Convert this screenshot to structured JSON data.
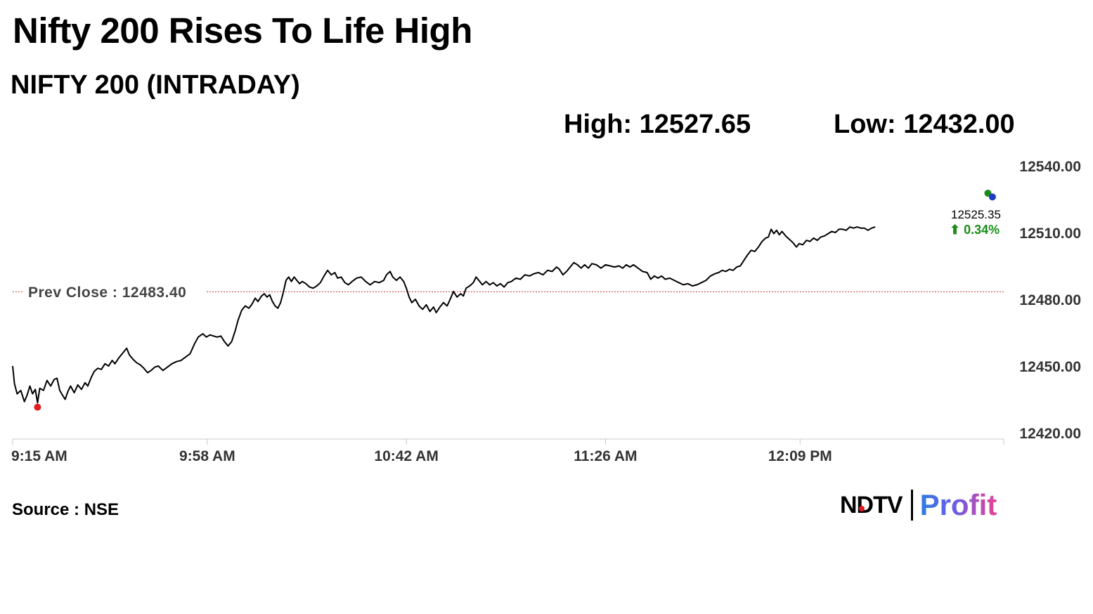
{
  "header": {
    "headline": "Nifty 200 Rises To Life High",
    "subtitle": "NIFTY 200 (INTRADAY)",
    "high_label": "High: 12527.65",
    "low_label": "Low: 12432.00"
  },
  "footer": {
    "source": "Source : NSE",
    "logo_ndtv": "NDTV",
    "logo_profit": "Profit"
  },
  "chart_data": {
    "type": "line",
    "title": "NIFTY 200 (INTRADAY)",
    "xlabel": "",
    "ylabel": "",
    "x_ticks": [
      "9:15 AM",
      "9:58 AM",
      "10:42 AM",
      "11:26 AM",
      "12:09 PM"
    ],
    "x_tick_minutes": [
      555,
      598,
      642,
      686,
      729
    ],
    "xlim": [
      555,
      774
    ],
    "y_ticks": [
      "12540.00",
      "12510.00",
      "12480.00",
      "12450.00",
      "12420.00"
    ],
    "ylim": [
      12418,
      12541
    ],
    "grid": false,
    "prev_close": 12483.4,
    "prev_close_label": "Prev Close : 12483.40",
    "prev_close_color": "#c0392b",
    "line_color": "#000000",
    "last_value": "12525.35",
    "change": "0.34%",
    "change_arrow": "⬆",
    "change_color": "#1a8c1a",
    "low_marker": {
      "time": 560.5,
      "value": 12431.5,
      "color": "#e02020"
    },
    "high_marker": {
      "time": 770.5,
      "value": 12527.7,
      "color": "#1a8c1a"
    },
    "current_marker": {
      "time": 771.5,
      "value": 12526.0,
      "color": "#1f3fbf"
    },
    "series": [
      {
        "points": [
          [
            555.0,
            12450.0
          ],
          [
            555.4,
            12442.0
          ],
          [
            556.0,
            12437.5
          ],
          [
            556.8,
            12439.0
          ],
          [
            557.6,
            12434.0
          ],
          [
            558.2,
            12437.0
          ],
          [
            558.8,
            12441.0
          ],
          [
            559.4,
            12437.5
          ],
          [
            560.0,
            12439.5
          ],
          [
            560.5,
            12433.5
          ],
          [
            561.0,
            12440.0
          ],
          [
            561.8,
            12439.0
          ],
          [
            562.6,
            12443.5
          ],
          [
            563.4,
            12441.0
          ],
          [
            564.2,
            12444.0
          ],
          [
            564.8,
            12444.5
          ],
          [
            565.4,
            12439.0
          ],
          [
            566.0,
            12437.0
          ],
          [
            566.6,
            12435.0
          ],
          [
            567.2,
            12438.5
          ],
          [
            567.8,
            12441.0
          ],
          [
            568.6,
            12438.0
          ],
          [
            569.4,
            12441.5
          ],
          [
            570.2,
            12439.5
          ],
          [
            571.0,
            12442.5
          ],
          [
            571.6,
            12441.0
          ],
          [
            572.4,
            12445.0
          ],
          [
            573.0,
            12447.5
          ],
          [
            573.8,
            12449.0
          ],
          [
            574.6,
            12448.5
          ],
          [
            575.4,
            12451.0
          ],
          [
            576.2,
            12450.0
          ],
          [
            577.0,
            12452.5
          ],
          [
            577.6,
            12451.0
          ],
          [
            578.4,
            12453.5
          ],
          [
            579.4,
            12456.0
          ],
          [
            580.2,
            12458.0
          ],
          [
            580.8,
            12455.0
          ],
          [
            581.6,
            12453.0
          ],
          [
            582.4,
            12451.5
          ],
          [
            583.2,
            12450.5
          ],
          [
            584.0,
            12449.0
          ],
          [
            584.8,
            12447.0
          ],
          [
            585.6,
            12448.0
          ],
          [
            586.4,
            12449.5
          ],
          [
            587.2,
            12450.0
          ],
          [
            588.2,
            12448.0
          ],
          [
            589.2,
            12449.5
          ],
          [
            590.2,
            12451.0
          ],
          [
            591.2,
            12452.0
          ],
          [
            592.2,
            12452.5
          ],
          [
            593.2,
            12454.0
          ],
          [
            594.2,
            12455.5
          ],
          [
            595.2,
            12460.0
          ],
          [
            596.0,
            12463.0
          ],
          [
            597.0,
            12464.5
          ],
          [
            597.8,
            12463.0
          ],
          [
            598.6,
            12464.0
          ],
          [
            599.4,
            12463.5
          ],
          [
            600.2,
            12463.0
          ],
          [
            601.0,
            12463.5
          ],
          [
            601.8,
            12461.0
          ],
          [
            602.6,
            12459.0
          ],
          [
            603.4,
            12461.0
          ],
          [
            604.2,
            12466.0
          ],
          [
            604.8,
            12470.5
          ],
          [
            605.6,
            12475.0
          ],
          [
            606.4,
            12477.0
          ],
          [
            607.2,
            12476.0
          ],
          [
            607.8,
            12477.5
          ],
          [
            608.6,
            12480.5
          ],
          [
            609.2,
            12479.0
          ],
          [
            610.0,
            12481.5
          ],
          [
            610.6,
            12482.5
          ],
          [
            611.2,
            12481.0
          ],
          [
            611.8,
            12482.0
          ],
          [
            612.4,
            12479.0
          ],
          [
            613.0,
            12477.0
          ],
          [
            613.6,
            12476.0
          ],
          [
            614.2,
            12478.5
          ],
          [
            614.8,
            12483.0
          ],
          [
            615.4,
            12488.5
          ],
          [
            616.0,
            12490.0
          ],
          [
            616.6,
            12488.0
          ],
          [
            617.2,
            12490.0
          ],
          [
            617.8,
            12488.5
          ],
          [
            618.4,
            12487.0
          ],
          [
            619.0,
            12488.0
          ],
          [
            619.8,
            12487.0
          ],
          [
            620.6,
            12485.5
          ],
          [
            621.4,
            12485.0
          ],
          [
            622.2,
            12486.0
          ],
          [
            623.0,
            12487.5
          ],
          [
            623.8,
            12490.5
          ],
          [
            624.6,
            12493.0
          ],
          [
            625.4,
            12491.0
          ],
          [
            626.2,
            12492.0
          ],
          [
            626.8,
            12489.5
          ],
          [
            627.6,
            12490.0
          ],
          [
            628.4,
            12487.5
          ],
          [
            629.2,
            12486.5
          ],
          [
            630.0,
            12488.0
          ],
          [
            631.0,
            12489.5
          ],
          [
            632.0,
            12490.0
          ],
          [
            633.0,
            12488.0
          ],
          [
            634.0,
            12486.5
          ],
          [
            635.0,
            12488.0
          ],
          [
            636.0,
            12487.5
          ],
          [
            637.0,
            12488.5
          ],
          [
            637.6,
            12491.0
          ],
          [
            638.4,
            12492.5
          ],
          [
            639.0,
            12490.0
          ],
          [
            639.8,
            12488.5
          ],
          [
            640.6,
            12490.0
          ],
          [
            641.4,
            12488.0
          ],
          [
            642.0,
            12485.0
          ],
          [
            642.6,
            12481.0
          ],
          [
            643.2,
            12478.5
          ],
          [
            644.0,
            12480.0
          ],
          [
            644.8,
            12477.0
          ],
          [
            645.6,
            12475.5
          ],
          [
            646.4,
            12477.5
          ],
          [
            647.2,
            12474.5
          ],
          [
            648.0,
            12476.5
          ],
          [
            648.6,
            12474.0
          ],
          [
            649.4,
            12476.5
          ],
          [
            650.2,
            12478.5
          ],
          [
            651.0,
            12477.0
          ],
          [
            651.8,
            12480.5
          ],
          [
            652.4,
            12483.5
          ],
          [
            653.2,
            12481.0
          ],
          [
            654.0,
            12482.5
          ],
          [
            654.6,
            12481.5
          ],
          [
            655.2,
            12485.0
          ],
          [
            656.0,
            12486.0
          ],
          [
            656.8,
            12487.5
          ],
          [
            657.4,
            12490.0
          ],
          [
            658.0,
            12488.5
          ],
          [
            658.8,
            12486.5
          ],
          [
            659.6,
            12488.0
          ],
          [
            660.4,
            12486.5
          ],
          [
            661.2,
            12487.5
          ],
          [
            662.0,
            12486.0
          ],
          [
            662.8,
            12487.0
          ],
          [
            663.6,
            12485.5
          ],
          [
            664.4,
            12487.5
          ],
          [
            665.2,
            12488.0
          ],
          [
            666.2,
            12489.5
          ],
          [
            667.2,
            12489.0
          ],
          [
            668.2,
            12491.0
          ],
          [
            669.2,
            12490.5
          ],
          [
            670.2,
            12491.5
          ],
          [
            671.2,
            12492.0
          ],
          [
            672.2,
            12491.0
          ],
          [
            673.2,
            12493.0
          ],
          [
            674.2,
            12492.5
          ],
          [
            675.2,
            12494.5
          ],
          [
            675.8,
            12493.5
          ],
          [
            676.6,
            12491.0
          ],
          [
            677.4,
            12492.5
          ],
          [
            678.2,
            12494.5
          ],
          [
            679.0,
            12496.5
          ],
          [
            679.8,
            12495.5
          ],
          [
            680.6,
            12494.0
          ],
          [
            681.4,
            12495.5
          ],
          [
            682.2,
            12494.0
          ],
          [
            683.0,
            12496.0
          ],
          [
            684.0,
            12495.5
          ],
          [
            685.0,
            12494.0
          ],
          [
            686.0,
            12495.5
          ],
          [
            687.0,
            12495.0
          ],
          [
            688.0,
            12494.5
          ],
          [
            689.0,
            12495.0
          ],
          [
            689.8,
            12494.0
          ],
          [
            690.6,
            12495.5
          ],
          [
            691.4,
            12494.5
          ],
          [
            692.2,
            12495.5
          ],
          [
            693.2,
            12494.0
          ],
          [
            694.2,
            12492.5
          ],
          [
            695.2,
            12492.0
          ],
          [
            696.0,
            12489.0
          ],
          [
            696.8,
            12490.5
          ],
          [
            697.6,
            12489.5
          ],
          [
            698.4,
            12490.5
          ],
          [
            699.2,
            12489.0
          ],
          [
            700.2,
            12489.5
          ],
          [
            701.2,
            12488.5
          ],
          [
            702.2,
            12487.5
          ],
          [
            703.2,
            12486.5
          ],
          [
            704.2,
            12487.0
          ],
          [
            705.2,
            12486.0
          ],
          [
            706.2,
            12486.5
          ],
          [
            707.2,
            12487.5
          ],
          [
            708.2,
            12488.5
          ],
          [
            709.2,
            12490.5
          ],
          [
            710.2,
            12491.5
          ],
          [
            711.0,
            12492.0
          ],
          [
            711.8,
            12493.0
          ],
          [
            712.6,
            12492.5
          ],
          [
            713.4,
            12493.5
          ],
          [
            714.2,
            12493.0
          ],
          [
            715.0,
            12494.5
          ],
          [
            715.8,
            12495.0
          ],
          [
            716.6,
            12497.5
          ],
          [
            717.4,
            12500.0
          ],
          [
            718.2,
            12502.0
          ],
          [
            719.0,
            12501.5
          ],
          [
            719.8,
            12503.5
          ],
          [
            720.6,
            12506.0
          ],
          [
            721.4,
            12507.5
          ],
          [
            722.0,
            12508.0
          ],
          [
            722.6,
            12511.5
          ],
          [
            723.2,
            12509.5
          ],
          [
            723.8,
            12511.0
          ],
          [
            724.4,
            12509.0
          ],
          [
            725.0,
            12510.5
          ],
          [
            725.8,
            12508.5
          ],
          [
            726.6,
            12507.0
          ],
          [
            727.4,
            12505.5
          ],
          [
            728.2,
            12503.5
          ],
          [
            728.8,
            12505.0
          ],
          [
            729.6,
            12504.5
          ],
          [
            730.4,
            12506.5
          ],
          [
            731.2,
            12506.0
          ],
          [
            732.0,
            12507.5
          ],
          [
            732.8,
            12506.5
          ],
          [
            733.6,
            12508.0
          ],
          [
            734.4,
            12508.5
          ],
          [
            735.2,
            12509.5
          ],
          [
            736.0,
            12510.5
          ],
          [
            736.8,
            12510.0
          ],
          [
            737.6,
            12511.5
          ],
          [
            738.4,
            12511.5
          ],
          [
            739.2,
            12511.0
          ],
          [
            740.0,
            12512.5
          ],
          [
            740.8,
            12512.0
          ],
          [
            741.6,
            12512.5
          ],
          [
            742.4,
            12512.0
          ],
          [
            743.2,
            12512.0
          ],
          [
            744.0,
            12511.0
          ],
          [
            744.8,
            12512.0
          ],
          [
            745.6,
            12512.5
          ]
        ]
      }
    ]
  }
}
